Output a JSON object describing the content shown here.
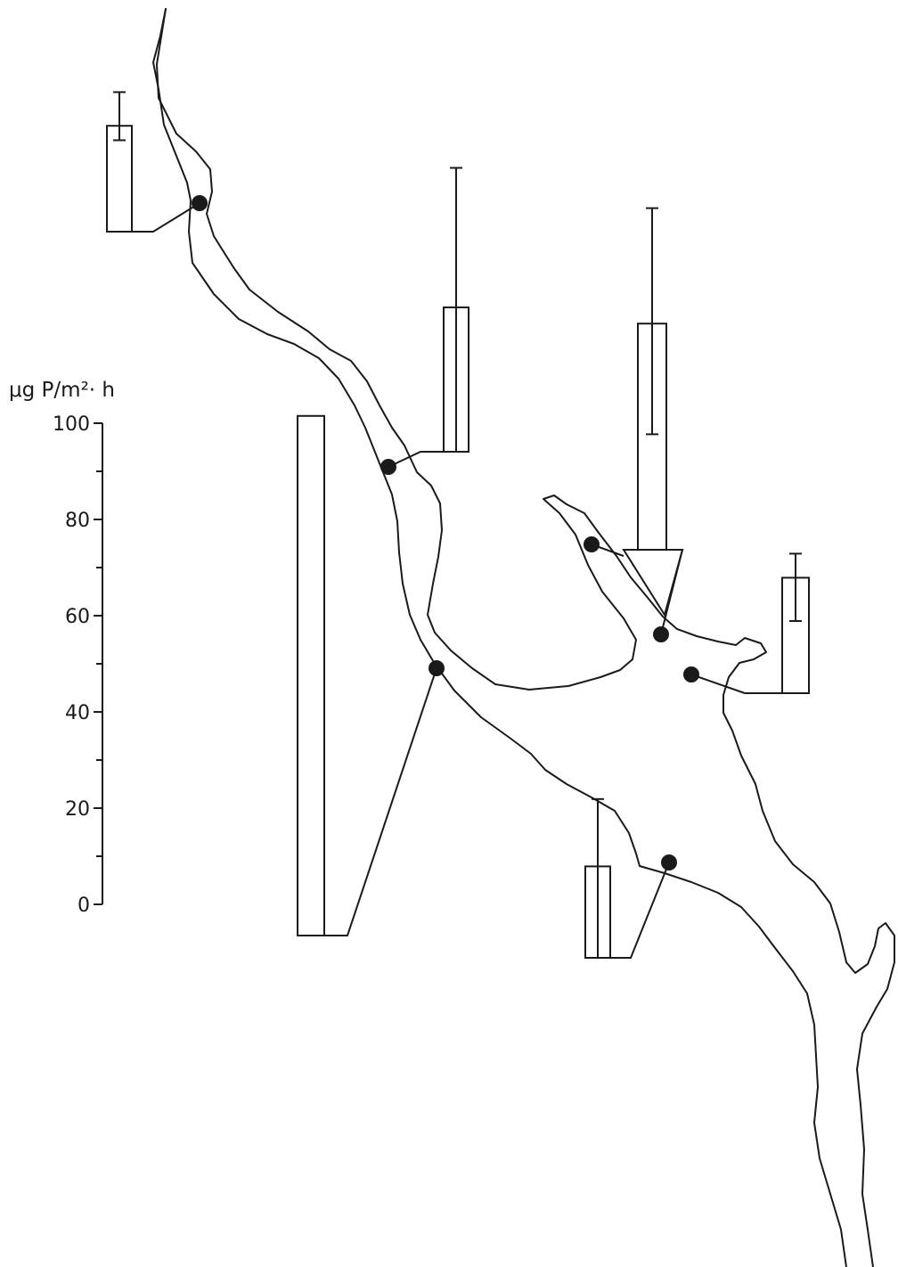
{
  "chart_data": {
    "type": "bar",
    "unit_label": "μg P/m²· h",
    "ylim": [
      0,
      100
    ],
    "y_ticks": [
      "0",
      "20",
      "40",
      "60",
      "80",
      "100"
    ],
    "grid": false,
    "stations": [
      {
        "value": 22,
        "error_low": 19,
        "error_high": 29
      },
      {
        "value": 30,
        "error_low": 0,
        "error_high": 59
      },
      {
        "value": 108,
        "error_low": 0,
        "error_high": 0
      },
      {
        "value": 47,
        "error_low": 24,
        "error_high": 71
      },
      {
        "value": 24,
        "error_low": 15,
        "error_high": 29
      },
      {
        "value": 19,
        "error_low": 0,
        "error_high": 33
      },
      {
        "value": 0,
        "error_low": 0,
        "error_high": 0
      },
      {
        "value": 0,
        "error_low": 0,
        "error_high": 0
      }
    ]
  }
}
